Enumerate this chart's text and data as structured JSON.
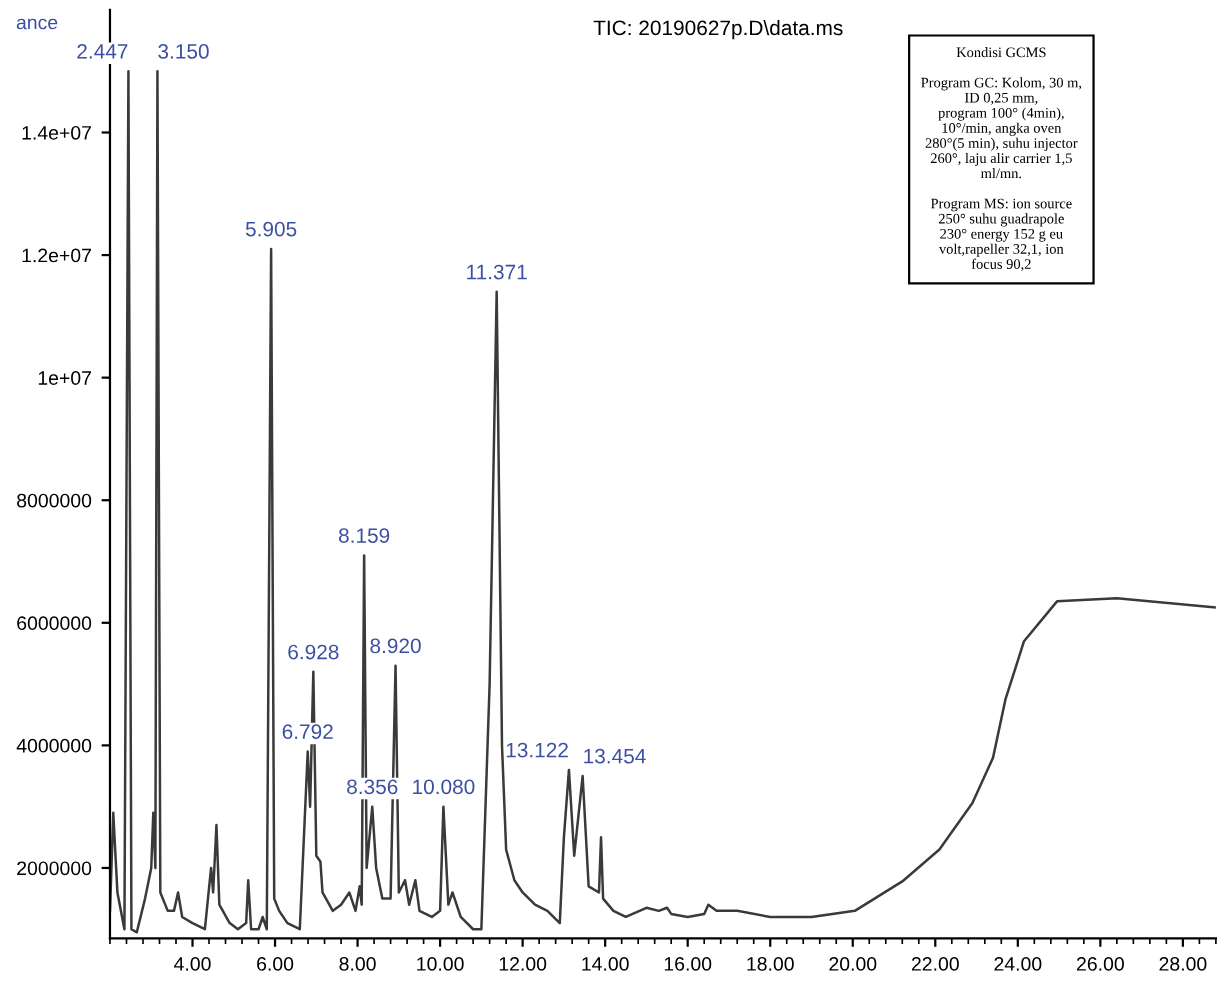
{
  "chart_data": {
    "type": "line",
    "title": "TIC: 20190627p.D\\data.ms",
    "ylabel": "ance",
    "x": [
      2.0,
      2.08,
      2.18,
      2.35,
      2.447,
      2.52,
      2.65,
      2.85,
      3.0,
      3.05,
      3.1,
      3.15,
      3.22,
      3.4,
      3.55,
      3.65,
      3.75,
      4.0,
      4.3,
      4.45,
      4.5,
      4.58,
      4.65,
      4.9,
      5.1,
      5.3,
      5.35,
      5.42,
      5.6,
      5.7,
      5.8,
      5.905,
      5.98,
      6.1,
      6.3,
      6.6,
      6.792,
      6.85,
      6.928,
      7.0,
      7.1,
      7.15,
      7.4,
      7.6,
      7.8,
      7.95,
      8.05,
      8.1,
      8.159,
      8.22,
      8.356,
      8.45,
      8.6,
      8.8,
      8.92,
      9.0,
      9.15,
      9.25,
      9.4,
      9.5,
      9.8,
      10.0,
      10.08,
      10.2,
      10.3,
      10.5,
      10.8,
      11.0,
      11.2,
      11.371,
      11.5,
      11.6,
      11.8,
      12.0,
      12.3,
      12.6,
      12.9,
      13.0,
      13.122,
      13.25,
      13.454,
      13.6,
      13.85,
      13.9,
      13.95,
      14.2,
      14.5,
      15.0,
      15.3,
      15.5,
      15.6,
      16.0,
      16.4,
      16.5,
      16.7,
      17.2,
      18.0,
      19.0,
      20.05,
      21.2,
      22.1,
      22.9,
      23.4,
      23.7,
      24.15,
      24.95,
      26.4,
      28.8
    ],
    "series": [
      {
        "color": "#3a3a3a",
        "values": [
          1300000,
          2900000,
          1600000,
          1000000,
          15000000,
          1000000,
          950000,
          1500000,
          2000000,
          2900000,
          2000000,
          15000000,
          1600000,
          1300000,
          1300000,
          1600000,
          1200000,
          1100000,
          1000000,
          2000000,
          1600000,
          2700000,
          1400000,
          1100000,
          1000000,
          1100000,
          1800000,
          1000000,
          1000000,
          1200000,
          1000000,
          12100000,
          1500000,
          1300000,
          1100000,
          1000000,
          3900000,
          3000000,
          5200000,
          2200000,
          2100000,
          1600000,
          1300000,
          1400000,
          1600000,
          1300000,
          1700000,
          1400000,
          7100000,
          2000000,
          3000000,
          2000000,
          1500000,
          1500000,
          5300000,
          1600000,
          1800000,
          1400000,
          1800000,
          1300000,
          1200000,
          1300000,
          3000000,
          1400000,
          1600000,
          1200000,
          1000000,
          1000000,
          5000000,
          11400000,
          4000000,
          2300000,
          1800000,
          1600000,
          1400000,
          1300000,
          1100000,
          2500000,
          3600000,
          2200000,
          3500000,
          1700000,
          1600000,
          2500000,
          1500000,
          1300000,
          1200000,
          1350000,
          1300000,
          1350000,
          1250000,
          1200000,
          1250000,
          1400000,
          1300000,
          1300000,
          1200000,
          1200000,
          1300000,
          1780000,
          2300000,
          3060000,
          3800000,
          4750000,
          5700000,
          6350000,
          6400000,
          6250000
        ]
      }
    ],
    "xlim": [
      2.0,
      28.8
    ],
    "ylim": [
      850000,
      16000000
    ],
    "xticks": [
      {
        "value": 4,
        "label": "4.00"
      },
      {
        "value": 6,
        "label": "6.00"
      },
      {
        "value": 8,
        "label": "8.00"
      },
      {
        "value": 10,
        "label": "10.00"
      },
      {
        "value": 12,
        "label": "12.00"
      },
      {
        "value": 14,
        "label": "14.00"
      },
      {
        "value": 16,
        "label": "16.00"
      },
      {
        "value": 18,
        "label": "18.00"
      },
      {
        "value": 20,
        "label": "20.00"
      },
      {
        "value": 22,
        "label": "22.00"
      },
      {
        "value": 24,
        "label": "24.00"
      },
      {
        "value": 26,
        "label": "26.00"
      },
      {
        "value": 28,
        "label": "28.00"
      }
    ],
    "yticks": [
      2000000,
      4000000,
      6000000,
      8000000,
      {
        "value": 10000000,
        "label": "1e+07"
      },
      {
        "value": 12000000,
        "label": "1.2e+07"
      },
      {
        "value": 14000000,
        "label": "1.4e+07"
      }
    ],
    "grid": false,
    "legend": false,
    "marker": "none",
    "line_style": "solid",
    "annotations": [
      {
        "text": "2.447",
        "x": 2.447,
        "y": 15000000
      },
      {
        "text": "3.150",
        "x": 3.15,
        "y": 15000000
      },
      {
        "text": "5.905",
        "x": 5.905,
        "y": 12100000
      },
      {
        "text": "6.792",
        "x": 6.792,
        "y": 3900000
      },
      {
        "text": "6.928",
        "x": 6.928,
        "y": 5200000
      },
      {
        "text": "8.159",
        "x": 8.159,
        "y": 7100000
      },
      {
        "text": "8.356",
        "x": 8.356,
        "y": 3000000
      },
      {
        "text": "8.920",
        "x": 8.92,
        "y": 5300000
      },
      {
        "text": "10.080",
        "x": 10.08,
        "y": 3000000
      },
      {
        "text": "11.371",
        "x": 11.371,
        "y": 11400000
      },
      {
        "text": "13.122",
        "x": 13.122,
        "y": 3600000
      },
      {
        "text": "13.454",
        "x": 13.454,
        "y": 3500000
      },
      "Kondisi GCMS\n\nProgram GC: Kolom, 30 m,\nID 0,25 mm,\nprogram 100° (4min),\n10°/min, angka oven\n280°(5 min), suhu injector\n260°, laju alir carrier 1,5\nml/mn.\n\nProgram MS: ion source\n250° suhu guadrapole\n230° energy 152 g eu\nvolt,rapeller 32,1, ion\nfocus 90,2"
    ]
  }
}
